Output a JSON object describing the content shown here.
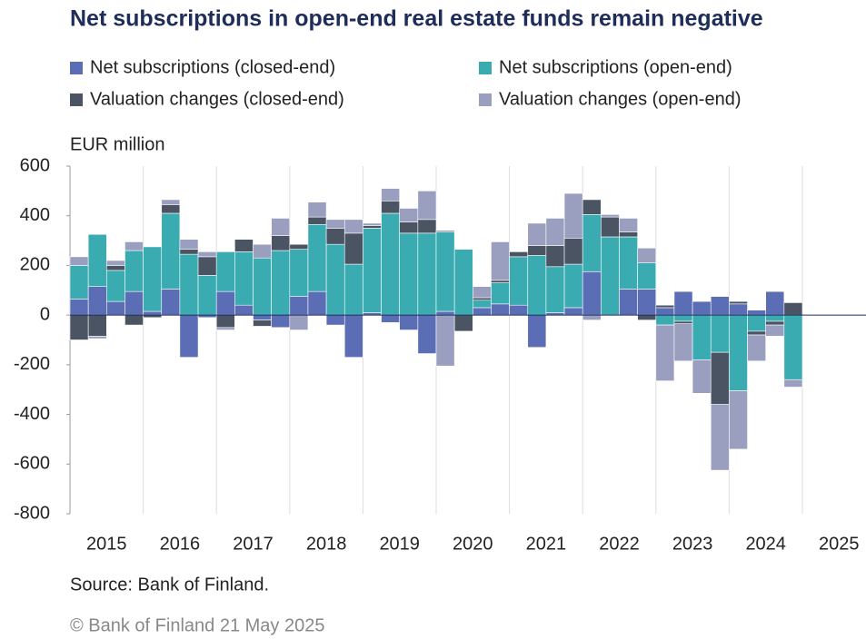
{
  "chart_data": {
    "type": "stacked_bar",
    "title": "Net subscriptions in open-end real estate funds remain negative",
    "y_label": "EUR million",
    "source": "Source: Bank of Finland.",
    "copyright": "© Bank of Finland 21 May 2025",
    "years": [
      "2015",
      "2016",
      "2017",
      "2018",
      "2019",
      "2020",
      "2021",
      "2022",
      "2023",
      "2024",
      "2025"
    ],
    "categories": [
      null,
      null,
      null,
      null,
      null,
      null,
      null,
      null,
      null,
      null,
      null,
      null,
      null,
      null,
      null,
      null,
      null,
      null,
      null,
      null,
      null,
      null,
      null,
      null,
      null,
      null,
      null,
      null,
      null,
      null,
      null,
      null,
      null,
      null,
      null,
      null,
      null,
      null,
      null,
      null
    ],
    "series": [
      {
        "name": "Net subscriptions (closed-end)",
        "color": "#5b6db5",
        "values": [
          65,
          115,
          55,
          95,
          15,
          105,
          -170,
          -10,
          95,
          40,
          -20,
          -50,
          75,
          95,
          -40,
          -170,
          10,
          -30,
          -60,
          -155,
          15,
          0,
          30,
          45,
          40,
          -130,
          10,
          30,
          175,
          0,
          105,
          105,
          30,
          95,
          55,
          75,
          45,
          20,
          95,
          0
        ]
      },
      {
        "name": "Net subscriptions (open-end)",
        "color": "#3aabb0",
        "values": [
          135,
          210,
          125,
          165,
          260,
          305,
          245,
          160,
          160,
          215,
          230,
          260,
          190,
          270,
          285,
          205,
          340,
          410,
          330,
          330,
          320,
          265,
          30,
          85,
          195,
          240,
          185,
          175,
          230,
          315,
          210,
          105,
          -40,
          -25,
          -180,
          -150,
          -305,
          -65,
          -25,
          -260
        ]
      },
      {
        "name": "Valuation changes (closed-end)",
        "color": "#4a5463",
        "values": [
          -100,
          -85,
          20,
          -40,
          -10,
          35,
          20,
          75,
          -50,
          50,
          -25,
          60,
          20,
          30,
          65,
          125,
          10,
          50,
          45,
          55,
          5,
          -65,
          10,
          10,
          20,
          40,
          85,
          105,
          60,
          80,
          20,
          -20,
          10,
          -10,
          0,
          -210,
          10,
          -15,
          -15,
          50
        ]
      },
      {
        "name": "Valuation changes (open-end)",
        "color": "#9a9fc0",
        "values": [
          35,
          -10,
          20,
          35,
          0,
          20,
          40,
          20,
          -10,
          0,
          55,
          70,
          -60,
          60,
          35,
          55,
          10,
          50,
          55,
          115,
          -205,
          0,
          45,
          155,
          0,
          90,
          110,
          180,
          -20,
          10,
          55,
          60,
          -225,
          -150,
          -135,
          -265,
          -235,
          -105,
          -45,
          -30
        ]
      }
    ],
    "ylim": [
      -800,
      600
    ],
    "yticks": [
      -800,
      -600,
      -400,
      -200,
      0,
      200,
      400,
      600
    ],
    "legend": "top"
  }
}
